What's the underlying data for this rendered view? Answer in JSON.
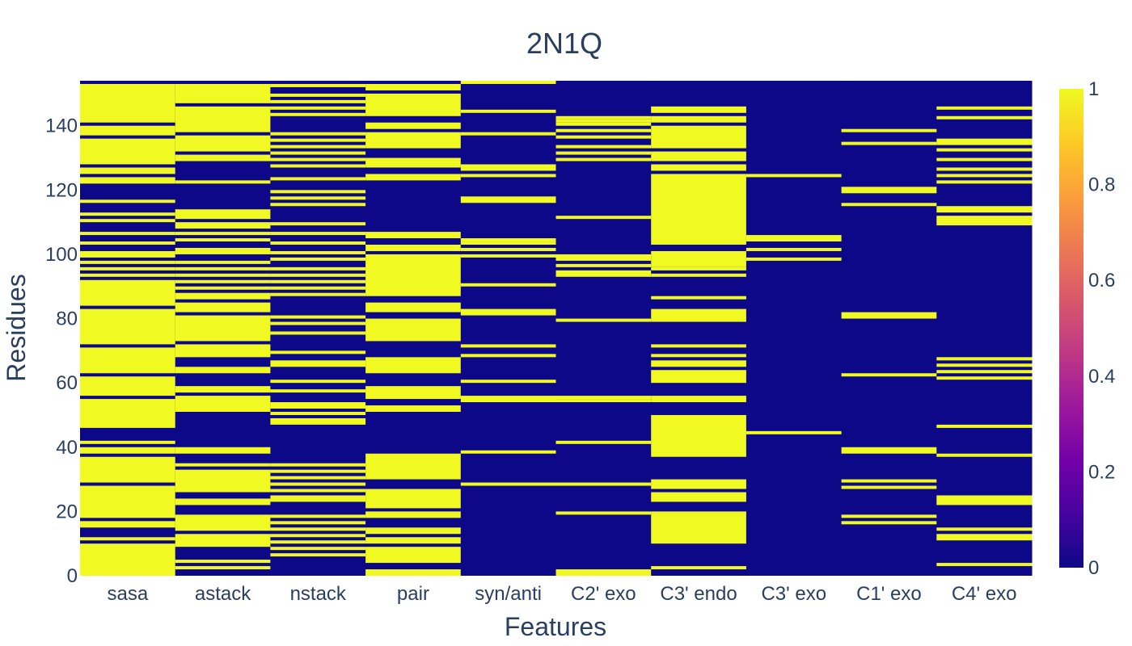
{
  "chart_data": {
    "type": "heatmap",
    "title": "2N1Q",
    "xlabel": "Features",
    "ylabel": "Residues",
    "categories": [
      "sasa",
      "astack",
      "nstack",
      "pair",
      "syn/anti",
      "C2' exo",
      "C3' endo",
      "C3' exo",
      "C1' exo",
      "C4' exo"
    ],
    "y_range": [
      0,
      154
    ],
    "y_ticks": [
      0,
      20,
      40,
      60,
      80,
      100,
      120,
      140
    ],
    "z_range": [
      0,
      1
    ],
    "colorbar_ticks": [
      0,
      0.2,
      0.4,
      0.6,
      0.8,
      1
    ],
    "colorscale": [
      "#0d0887",
      "#46039f",
      "#7201a8",
      "#9c179e",
      "#bd3786",
      "#d8576b",
      "#ed7953",
      "#fb9f3a",
      "#fdca26",
      "#f0f921"
    ],
    "columns": {
      "sasa": [
        [
          0,
          10
        ],
        [
          11,
          12
        ],
        [
          15,
          17
        ],
        [
          18,
          28
        ],
        [
          29,
          37
        ],
        [
          38,
          40
        ],
        [
          41,
          42
        ],
        [
          46,
          55
        ],
        [
          56,
          62
        ],
        [
          63,
          71
        ],
        [
          72,
          83
        ],
        [
          84,
          92
        ],
        [
          93,
          94
        ],
        [
          95,
          96
        ],
        [
          97,
          98
        ],
        [
          99,
          101
        ],
        [
          103,
          104
        ],
        [
          106,
          107
        ],
        [
          110,
          111
        ],
        [
          112,
          113
        ],
        [
          116,
          117
        ],
        [
          122,
          124
        ],
        [
          125,
          127
        ],
        [
          128,
          136
        ],
        [
          137,
          140
        ],
        [
          141,
          153
        ]
      ],
      "astack": [
        [
          2,
          3
        ],
        [
          4,
          5
        ],
        [
          9,
          13
        ],
        [
          14,
          19
        ],
        [
          22,
          24
        ],
        [
          26,
          33
        ],
        [
          34,
          35
        ],
        [
          38,
          40
        ],
        [
          51,
          56
        ],
        [
          57,
          59
        ],
        [
          63,
          65
        ],
        [
          68,
          72
        ],
        [
          73,
          81
        ],
        [
          82,
          85
        ],
        [
          86,
          88
        ],
        [
          89,
          90
        ],
        [
          91,
          92
        ],
        [
          93,
          94
        ],
        [
          95,
          96
        ],
        [
          97,
          98
        ],
        [
          100,
          102
        ],
        [
          104,
          105
        ],
        [
          106,
          107
        ],
        [
          108,
          110
        ],
        [
          111,
          114
        ],
        [
          122,
          123
        ],
        [
          129,
          131
        ],
        [
          132,
          137
        ],
        [
          138,
          146
        ],
        [
          147,
          153
        ]
      ],
      "nstack": [
        [
          6,
          7
        ],
        [
          8,
          9
        ],
        [
          10,
          11
        ],
        [
          12,
          13
        ],
        [
          14,
          15
        ],
        [
          16,
          17
        ],
        [
          18,
          19
        ],
        [
          23,
          25
        ],
        [
          26,
          27
        ],
        [
          28,
          29
        ],
        [
          30,
          31
        ],
        [
          32,
          33
        ],
        [
          34,
          35
        ],
        [
          47,
          49
        ],
        [
          50,
          51
        ],
        [
          52,
          54
        ],
        [
          57,
          58
        ],
        [
          60,
          61
        ],
        [
          65,
          67
        ],
        [
          69,
          70
        ],
        [
          75,
          76
        ],
        [
          78,
          79
        ],
        [
          80,
          81
        ],
        [
          87,
          88
        ],
        [
          89,
          90
        ],
        [
          91,
          92
        ],
        [
          93,
          94
        ],
        [
          95,
          96
        ],
        [
          98,
          99
        ],
        [
          100,
          101
        ],
        [
          103,
          104
        ],
        [
          106,
          107
        ],
        [
          109,
          110
        ],
        [
          115,
          116
        ],
        [
          117,
          118
        ],
        [
          119,
          120
        ],
        [
          123,
          124
        ],
        [
          127,
          128
        ],
        [
          129,
          130
        ],
        [
          131,
          132
        ],
        [
          133,
          134
        ],
        [
          135,
          136
        ],
        [
          137,
          138
        ],
        [
          143,
          144
        ],
        [
          145,
          146
        ],
        [
          147,
          148
        ],
        [
          149,
          150
        ],
        [
          152,
          153
        ]
      ],
      "pair": [
        [
          0,
          2
        ],
        [
          4,
          9
        ],
        [
          10,
          12
        ],
        [
          13,
          15
        ],
        [
          18,
          20
        ],
        [
          21,
          27
        ],
        [
          30,
          38
        ],
        [
          51,
          53
        ],
        [
          55,
          59
        ],
        [
          63,
          68
        ],
        [
          73,
          80
        ],
        [
          82,
          85
        ],
        [
          87,
          100
        ],
        [
          101,
          103
        ],
        [
          105,
          107
        ],
        [
          123,
          125
        ],
        [
          127,
          130
        ],
        [
          133,
          138
        ],
        [
          139,
          141
        ],
        [
          143,
          150
        ],
        [
          151,
          153
        ]
      ],
      "syn/anti": [
        [
          28,
          29
        ],
        [
          38,
          39
        ],
        [
          54,
          56
        ],
        [
          60,
          61
        ],
        [
          68,
          69
        ],
        [
          71,
          72
        ],
        [
          81,
          83
        ],
        [
          90,
          91
        ],
        [
          99,
          100
        ],
        [
          101,
          102
        ],
        [
          103,
          104
        ],
        [
          104,
          105
        ],
        [
          116,
          118
        ],
        [
          124,
          125
        ],
        [
          126,
          127
        ],
        [
          127,
          128
        ],
        [
          137,
          138
        ],
        [
          144,
          145
        ],
        [
          153,
          154
        ]
      ],
      "C2' exo": [
        [
          0,
          2
        ],
        [
          19,
          20
        ],
        [
          28,
          29
        ],
        [
          41,
          42
        ],
        [
          54,
          55
        ],
        [
          55,
          56
        ],
        [
          79,
          80
        ],
        [
          93,
          95
        ],
        [
          96,
          97
        ],
        [
          98,
          100
        ],
        [
          111,
          112
        ],
        [
          129,
          130
        ],
        [
          131,
          132
        ],
        [
          133,
          134
        ],
        [
          136,
          137
        ],
        [
          138,
          139
        ],
        [
          140,
          141
        ],
        [
          141,
          142
        ],
        [
          142,
          143
        ]
      ],
      "C3' endo": [
        [
          2,
          3
        ],
        [
          10,
          20
        ],
        [
          23,
          26
        ],
        [
          27,
          30
        ],
        [
          37,
          50
        ],
        [
          54,
          56
        ],
        [
          60,
          64
        ],
        [
          65,
          67
        ],
        [
          68,
          69
        ],
        [
          71,
          72
        ],
        [
          79,
          83
        ],
        [
          86,
          87
        ],
        [
          93,
          94
        ],
        [
          95,
          96
        ],
        [
          96,
          101
        ],
        [
          103,
          125
        ],
        [
          126,
          128
        ],
        [
          129,
          132
        ],
        [
          133,
          140
        ],
        [
          141,
          143
        ],
        [
          144,
          146
        ]
      ],
      "C3' exo": [
        [
          44,
          45
        ],
        [
          98,
          99
        ],
        [
          101,
          102
        ],
        [
          104,
          106
        ],
        [
          124,
          125
        ]
      ],
      "C1' exo": [
        [
          16,
          17
        ],
        [
          18,
          19
        ],
        [
          27,
          28
        ],
        [
          29,
          30
        ],
        [
          38,
          40
        ],
        [
          62,
          63
        ],
        [
          80,
          82
        ],
        [
          115,
          116
        ],
        [
          119,
          121
        ],
        [
          134,
          135
        ],
        [
          138,
          139
        ]
      ],
      "C4' exo": [
        [
          3,
          4
        ],
        [
          11,
          13
        ],
        [
          14,
          15
        ],
        [
          22,
          25
        ],
        [
          37,
          38
        ],
        [
          46,
          47
        ],
        [
          61,
          62
        ],
        [
          63,
          64
        ],
        [
          65,
          66
        ],
        [
          67,
          68
        ],
        [
          109,
          112
        ],
        [
          113,
          115
        ],
        [
          122,
          123
        ],
        [
          124,
          125
        ],
        [
          126,
          127
        ],
        [
          129,
          130
        ],
        [
          132,
          133
        ],
        [
          134,
          136
        ],
        [
          142,
          143
        ],
        [
          145,
          146
        ]
      ]
    }
  }
}
